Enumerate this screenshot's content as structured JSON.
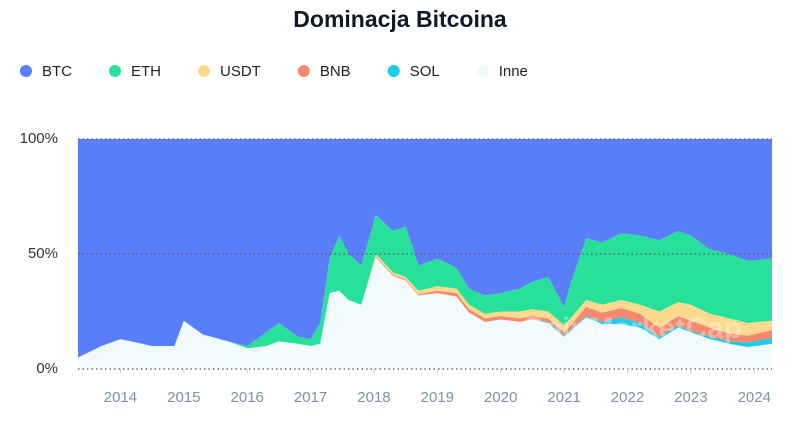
{
  "chart_data": {
    "type": "stacked_area",
    "title": "Dominacja Bitcoina",
    "watermark": "CoinMarketCap",
    "x": [
      2013.33,
      2013.7,
      2014.0,
      2014.5,
      2014.85,
      2015.0,
      2015.3,
      2015.7,
      2016.0,
      2016.3,
      2016.5,
      2016.8,
      2017.0,
      2017.15,
      2017.3,
      2017.45,
      2017.6,
      2017.8,
      2018.03,
      2018.3,
      2018.5,
      2018.7,
      2019.0,
      2019.3,
      2019.5,
      2019.75,
      2020.0,
      2020.3,
      2020.5,
      2020.75,
      2021.0,
      2021.1,
      2021.35,
      2021.6,
      2021.9,
      2022.2,
      2022.5,
      2022.8,
      2023.0,
      2023.3,
      2023.6,
      2023.9,
      2024.28
    ],
    "xlim": [
      2013.33,
      2024.28
    ],
    "xticks": [
      2014,
      2015,
      2016,
      2017,
      2018,
      2019,
      2020,
      2021,
      2022,
      2023,
      2024
    ],
    "ylim": [
      0,
      100
    ],
    "yticks": [
      {
        "value": 0,
        "label": "0%"
      },
      {
        "value": 50,
        "label": "50%"
      },
      {
        "value": 100,
        "label": "100%"
      }
    ],
    "grid": true,
    "series": [
      {
        "name": "BTC",
        "color": "#5a7ef7",
        "values": [
          95,
          90,
          87,
          90,
          90,
          79,
          85,
          88,
          90,
          84,
          80,
          86,
          87,
          80,
          52,
          42,
          50,
          55,
          33,
          40,
          38,
          55,
          52,
          56,
          65,
          68,
          67,
          65,
          62,
          60,
          73,
          63,
          43,
          45,
          41,
          42,
          44,
          40,
          42,
          48,
          50,
          53,
          52
        ]
      },
      {
        "name": "ETH",
        "color": "#27e19b",
        "values": [
          0,
          0,
          0,
          0,
          0,
          0,
          0,
          0,
          1,
          6,
          8,
          3,
          3,
          9,
          15,
          24,
          20,
          17,
          17,
          18,
          22,
          11,
          12,
          9,
          7,
          8,
          8,
          10,
          12,
          15,
          8,
          15,
          27,
          27,
          29,
          30,
          31,
          31,
          30,
          28,
          28,
          27,
          27
        ]
      },
      {
        "name": "USDT",
        "color": "#fcd98c",
        "values": [
          0,
          0,
          0,
          0,
          0,
          0,
          0,
          0,
          0,
          0,
          0,
          0,
          0,
          0,
          0,
          0,
          0,
          0,
          1,
          1,
          1,
          1.5,
          2,
          2,
          2,
          2,
          2,
          3,
          3,
          3,
          3,
          3,
          3,
          3.5,
          3.5,
          4,
          7,
          6,
          7,
          6,
          6.5,
          5.5,
          4
        ]
      },
      {
        "name": "BNB",
        "color": "#f38a70",
        "values": [
          0,
          0,
          0,
          0,
          0,
          0,
          0,
          0,
          0,
          0,
          0,
          0,
          0,
          0,
          0,
          0,
          0,
          0,
          0.5,
          0.5,
          0.5,
          0.5,
          1,
          1.5,
          1.5,
          1.5,
          1.5,
          1.5,
          1.5,
          1.5,
          1.5,
          2,
          4,
          4,
          4,
          4,
          4,
          4,
          4.5,
          4,
          3.5,
          3,
          3.5
        ]
      },
      {
        "name": "SOL",
        "color": "#20cbe6",
        "values": [
          0,
          0,
          0,
          0,
          0,
          0,
          0,
          0,
          0,
          0,
          0,
          0,
          0,
          0,
          0,
          0,
          0,
          0,
          0,
          0,
          0,
          0,
          0,
          0,
          0,
          0,
          0,
          0,
          0,
          0.5,
          0.5,
          0.5,
          0.5,
          1,
          3,
          2,
          1,
          1,
          0.5,
          1,
          1,
          2,
          2.5
        ]
      },
      {
        "name": "Inne",
        "color": "#f1fafd",
        "values": [
          5,
          10,
          13,
          10,
          10,
          21,
          15,
          12,
          9,
          10,
          12,
          11,
          10,
          11,
          33,
          34,
          30,
          28,
          48.5,
          40.5,
          38.5,
          32,
          33,
          31.5,
          24.5,
          20.5,
          21.5,
          20.5,
          21.5,
          20,
          14,
          16.5,
          22.5,
          19.5,
          19.5,
          18,
          13,
          18,
          16,
          13,
          11,
          9.5,
          11
        ]
      }
    ]
  }
}
